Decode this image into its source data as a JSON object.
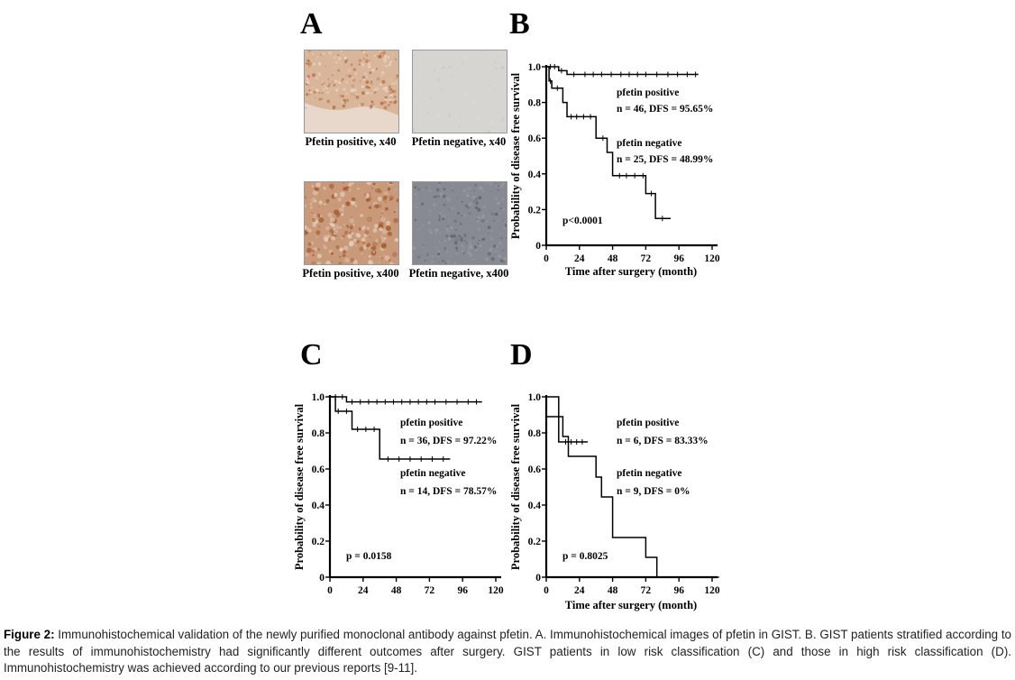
{
  "panel_letters": {
    "a": "A",
    "b": "B",
    "c": "C",
    "d": "D"
  },
  "micrographs": [
    {
      "id": "pos40",
      "label": "Pfetin positive, x40",
      "base": "#d9b59a",
      "spot": "#b8703e",
      "bg2": "#e8d8cc"
    },
    {
      "id": "neg40",
      "label": "Pfetin negative, x40",
      "base": "#d6d5d1",
      "spot": "#c9c6bf",
      "bg2": "#dedcd8"
    },
    {
      "id": "pos400",
      "label": "Pfetin positive, x400",
      "base": "#c89a7a",
      "spot": "#a4562c",
      "bg2": "#e6cfc0"
    },
    {
      "id": "neg400",
      "label": "Pfetin negative, x400",
      "base": "#878a92",
      "spot": "#5d6068",
      "bg2": "#9a9ca2"
    }
  ],
  "chart_data": [
    {
      "panel": "B",
      "type": "line",
      "ylabel": "Probability of disease free survival",
      "xlabel": "Time after surgery (month)",
      "xticks": [
        0,
        24,
        48,
        72,
        96,
        120
      ],
      "yticks": [
        "0",
        "0.2",
        "0.4",
        "0.6",
        "0.8",
        "1.0"
      ],
      "xlim": [
        0,
        120
      ],
      "ylim": [
        0,
        1.0
      ],
      "series": [
        {
          "name": "pfetin positive",
          "stats": "n = 46, DFS = 95.65%",
          "points": [
            [
              0,
              1.0
            ],
            [
              9,
              1.0
            ],
            [
              9,
              0.978
            ],
            [
              15,
              0.978
            ],
            [
              15,
              0.957
            ],
            [
              110,
              0.957
            ]
          ],
          "ticks": [
            3,
            6,
            11,
            20,
            28,
            34,
            40,
            47,
            54,
            60,
            66,
            72,
            80,
            88,
            95,
            102,
            108
          ]
        },
        {
          "name": "pfetin negative",
          "stats": "n = 25, DFS = 48.99%",
          "points": [
            [
              0,
              1.0
            ],
            [
              2,
              1.0
            ],
            [
              2,
              0.92
            ],
            [
              4,
              0.92
            ],
            [
              4,
              0.88
            ],
            [
              12,
              0.88
            ],
            [
              12,
              0.8
            ],
            [
              15,
              0.8
            ],
            [
              15,
              0.72
            ],
            [
              36,
              0.72
            ],
            [
              36,
              0.6
            ],
            [
              44,
              0.6
            ],
            [
              44,
              0.52
            ],
            [
              48,
              0.52
            ],
            [
              48,
              0.39
            ],
            [
              72,
              0.39
            ],
            [
              72,
              0.29
            ],
            [
              79,
              0.29
            ],
            [
              79,
              0.15
            ],
            [
              90,
              0.15
            ]
          ],
          "ticks": [
            3,
            8,
            18,
            22,
            27,
            32,
            41,
            53,
            58,
            64,
            70,
            76,
            84
          ]
        }
      ],
      "pvalue": "p<0.0001"
    },
    {
      "panel": "C",
      "type": "line",
      "ylabel": "Probability of disease free survival",
      "xlabel": "",
      "xticks": [
        0,
        24,
        48,
        72,
        96,
        120
      ],
      "yticks": [
        "0",
        "0.2",
        "0.4",
        "0.6",
        "0.8",
        "1.0"
      ],
      "xlim": [
        0,
        120
      ],
      "ylim": [
        0,
        1.0
      ],
      "series": [
        {
          "name": "pfetin positive",
          "stats": "n = 36, DFS = 97.22%",
          "points": [
            [
              0,
              1.0
            ],
            [
              12,
              1.0
            ],
            [
              12,
              0.972
            ],
            [
              110,
              0.972
            ]
          ],
          "ticks": [
            4,
            9,
            16,
            22,
            28,
            34,
            40,
            46,
            52,
            58,
            64,
            70,
            76,
            84,
            92,
            100,
            106
          ]
        },
        {
          "name": "pfetin negative",
          "stats": "n = 14, DFS = 78.57%",
          "points": [
            [
              0,
              1.0
            ],
            [
              4,
              1.0
            ],
            [
              4,
              0.92
            ],
            [
              16,
              0.92
            ],
            [
              16,
              0.82
            ],
            [
              36,
              0.82
            ],
            [
              36,
              0.655
            ],
            [
              87,
              0.655
            ]
          ],
          "ticks": [
            6,
            12,
            20,
            26,
            32,
            42,
            50,
            58,
            66,
            74,
            82
          ]
        }
      ],
      "pvalue": "p = 0.0158"
    },
    {
      "panel": "D",
      "type": "line",
      "ylabel": "Probability of disease free survival",
      "xlabel": "Time after surgery (month)",
      "xticks": [
        0,
        24,
        48,
        72,
        96,
        120
      ],
      "yticks": [
        "0",
        "0.2",
        "0.4",
        "0.6",
        "0.8",
        "1.0"
      ],
      "xlim": [
        0,
        120
      ],
      "ylim": [
        0,
        1.0
      ],
      "series": [
        {
          "name": "pfetin positive",
          "stats": "n = 6, DFS = 83.33%",
          "points": [
            [
              0,
              1.0
            ],
            [
              9,
              1.0
            ],
            [
              9,
              0.75
            ],
            [
              30,
              0.75
            ]
          ],
          "ticks": [
            14,
            18,
            22,
            26
          ]
        },
        {
          "name": "pfetin negative",
          "stats": "n = 9, DFS = 0%",
          "points": [
            [
              0,
              0.89
            ],
            [
              12,
              0.89
            ],
            [
              12,
              0.78
            ],
            [
              16,
              0.78
            ],
            [
              16,
              0.67
            ],
            [
              36,
              0.67
            ],
            [
              36,
              0.555
            ],
            [
              40,
              0.555
            ],
            [
              40,
              0.445
            ],
            [
              48,
              0.445
            ],
            [
              48,
              0.22
            ],
            [
              72,
              0.22
            ],
            [
              72,
              0.11
            ],
            [
              80,
              0.11
            ],
            [
              80,
              0
            ],
            [
              125,
              0
            ]
          ],
          "ticks": []
        }
      ],
      "pvalue": "p = 0.8025"
    }
  ],
  "caption": {
    "label": "Figure 2:",
    "text": " Immunohistochemical validation of the newly purified monoclonal antibody against pfetin. A. Immunohistochemical images of pfetin in GIST. B. GIST patients stratified according to the results of immunohistochemistry had significantly different outcomes after surgery. GIST patients in low risk classification (C) and those in high risk classification (D). Immunohistochemistry was achieved according to our previous reports [9-11]."
  }
}
